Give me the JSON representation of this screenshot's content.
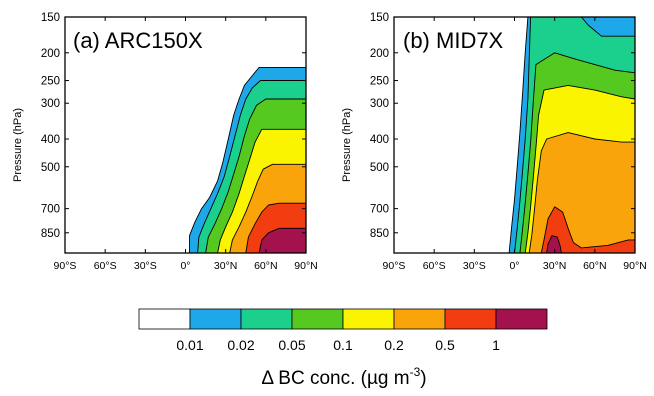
{
  "chart_data": [
    {
      "type": "contour",
      "title": "(a) ARC150X",
      "xlabel": "",
      "ylabel": "Pressure (hPa)",
      "x_ticks": [
        "90°S",
        "60°S",
        "30°S",
        "0°",
        "30°N",
        "60°N",
        "90°N"
      ],
      "x_values": [
        -90,
        -60,
        -30,
        0,
        30,
        60,
        90
      ],
      "xlim": [
        -90,
        90
      ],
      "y_ticks": [
        "150",
        "200",
        "250",
        "300",
        "400",
        "500",
        "700",
        "850"
      ],
      "y_values": [
        150,
        200,
        250,
        300,
        400,
        500,
        700,
        850
      ],
      "ylim": [
        1000,
        150
      ],
      "y_scale": "log",
      "contours": [
        {
          "level": 0.01,
          "boundary": [
            [
              3,
              1000
            ],
            [
              3,
              870
            ],
            [
              7,
              780
            ],
            [
              12,
              700
            ],
            [
              18,
              640
            ],
            [
              24,
              560
            ],
            [
              28,
              480
            ],
            [
              32,
              400
            ],
            [
              36,
              330
            ],
            [
              40,
              290
            ],
            [
              44,
              260
            ],
            [
              50,
              240
            ],
            [
              55,
              225
            ],
            [
              90,
              225
            ]
          ]
        },
        {
          "level": 0.02,
          "boundary": [
            [
              9,
              1000
            ],
            [
              10,
              880
            ],
            [
              14,
              790
            ],
            [
              19,
              700
            ],
            [
              24,
              620
            ],
            [
              29,
              540
            ],
            [
              33,
              460
            ],
            [
              37,
              390
            ],
            [
              41,
              330
            ],
            [
              45,
              290
            ],
            [
              50,
              265
            ],
            [
              56,
              250
            ],
            [
              90,
              250
            ]
          ]
        },
        {
          "level": 0.05,
          "boundary": [
            [
              15,
              1000
            ],
            [
              17,
              880
            ],
            [
              22,
              790
            ],
            [
              27,
              700
            ],
            [
              32,
              610
            ],
            [
              36,
              530
            ],
            [
              40,
              460
            ],
            [
              44,
              390
            ],
            [
              48,
              340
            ],
            [
              53,
              305
            ],
            [
              60,
              290
            ],
            [
              90,
              290
            ]
          ]
        },
        {
          "level": 0.1,
          "boundary": [
            [
              24,
              1000
            ],
            [
              26,
              900
            ],
            [
              30,
              810
            ],
            [
              35,
              720
            ],
            [
              40,
              620
            ],
            [
              44,
              540
            ],
            [
              48,
              470
            ],
            [
              52,
              410
            ],
            [
              57,
              370
            ],
            [
              90,
              370
            ]
          ]
        },
        {
          "level": 0.2,
          "boundary": [
            [
              33,
              1000
            ],
            [
              35,
              900
            ],
            [
              40,
              810
            ],
            [
              45,
              720
            ],
            [
              50,
              630
            ],
            [
              54,
              560
            ],
            [
              58,
              510
            ],
            [
              65,
              490
            ],
            [
              90,
              490
            ]
          ]
        },
        {
          "level": 0.5,
          "boundary": [
            [
              45,
              1000
            ],
            [
              47,
              880
            ],
            [
              52,
              790
            ],
            [
              57,
              720
            ],
            [
              62,
              680
            ],
            [
              70,
              670
            ],
            [
              90,
              670
            ]
          ]
        },
        {
          "level": 1,
          "boundary": [
            [
              55,
              1000
            ],
            [
              57,
              900
            ],
            [
              62,
              850
            ],
            [
              70,
              820
            ],
            [
              90,
              820
            ]
          ]
        }
      ]
    },
    {
      "type": "contour",
      "title": "(b) MID7X",
      "xlabel": "",
      "ylabel": "Pressure (hPa)",
      "x_ticks": [
        "90°S",
        "60°S",
        "30°S",
        "0°",
        "30°N",
        "60°N",
        "90°N"
      ],
      "x_values": [
        -90,
        -60,
        -30,
        0,
        30,
        60,
        90
      ],
      "xlim": [
        -90,
        90
      ],
      "y_ticks": [
        "150",
        "200",
        "250",
        "300",
        "400",
        "500",
        "700",
        "850"
      ],
      "y_values": [
        150,
        200,
        250,
        300,
        400,
        500,
        700,
        850
      ],
      "ylim": [
        1000,
        150
      ],
      "y_scale": "log",
      "contours": [
        {
          "level": 0.01,
          "boundary": [
            [
              -4,
              1000
            ],
            [
              -2,
              800
            ],
            [
              0,
              650
            ],
            [
              2,
              500
            ],
            [
              4,
              380
            ],
            [
              6,
              280
            ],
            [
              8,
              200
            ],
            [
              10,
              150
            ],
            [
              90,
              150
            ]
          ]
        },
        {
          "level": 0.02,
          "boundary": [
            [
              0,
              1000
            ],
            [
              2,
              820
            ],
            [
              4,
              660
            ],
            [
              6,
              520
            ],
            [
              8,
              400
            ],
            [
              10,
              290
            ],
            [
              11,
              210
            ],
            [
              12,
              150
            ],
            [
              50,
              150
            ],
            [
              55,
              160
            ],
            [
              65,
              175
            ],
            [
              90,
              175
            ]
          ]
        },
        {
          "level": 0.05,
          "boundary": [
            [
              4,
              1000
            ],
            [
              6,
              830
            ],
            [
              8,
              670
            ],
            [
              10,
              530
            ],
            [
              12,
              410
            ],
            [
              14,
              300
            ],
            [
              16,
              220
            ],
            [
              30,
              200
            ],
            [
              45,
              210
            ],
            [
              60,
              220
            ],
            [
              75,
              230
            ],
            [
              90,
              235
            ]
          ]
        },
        {
          "level": 0.1,
          "boundary": [
            [
              8,
              1000
            ],
            [
              10,
              850
            ],
            [
              12,
              690
            ],
            [
              14,
              550
            ],
            [
              16,
              430
            ],
            [
              18,
              330
            ],
            [
              22,
              270
            ],
            [
              40,
              260
            ],
            [
              60,
              270
            ],
            [
              80,
              285
            ],
            [
              90,
              290
            ]
          ]
        },
        {
          "level": 0.2,
          "boundary": [
            [
              11,
              1000
            ],
            [
              13,
              860
            ],
            [
              15,
              700
            ],
            [
              17,
              560
            ],
            [
              20,
              440
            ],
            [
              24,
              400
            ],
            [
              40,
              380
            ],
            [
              60,
              400
            ],
            [
              80,
              410
            ],
            [
              90,
              410
            ]
          ]
        },
        {
          "level": 0.5,
          "boundary": [
            [
              20,
              1000
            ],
            [
              22,
              900
            ],
            [
              25,
              760
            ],
            [
              30,
              690
            ],
            [
              36,
              720
            ],
            [
              40,
              820
            ],
            [
              44,
              920
            ],
            [
              50,
              960
            ],
            [
              70,
              940
            ],
            [
              85,
              900
            ],
            [
              90,
              900
            ]
          ]
        },
        {
          "level": 1,
          "boundary": [
            [
              24,
              1000
            ],
            [
              25,
              930
            ],
            [
              28,
              870
            ],
            [
              32,
              880
            ],
            [
              34,
              940
            ],
            [
              35,
              1000
            ]
          ]
        }
      ]
    }
  ],
  "colorbar": {
    "label_prefix": "Δ BC conc. (µg m",
    "label_sup": "-3",
    "label_suffix": ")",
    "boundaries": [
      "0.01",
      "0.02",
      "0.05",
      "0.1",
      "0.2",
      "0.5",
      "1"
    ],
    "colors": [
      "#ffffff",
      "#1ea8ea",
      "#1ad08c",
      "#55c91f",
      "#fbf400",
      "#f9a40a",
      "#f23d10",
      "#a4124d"
    ]
  }
}
